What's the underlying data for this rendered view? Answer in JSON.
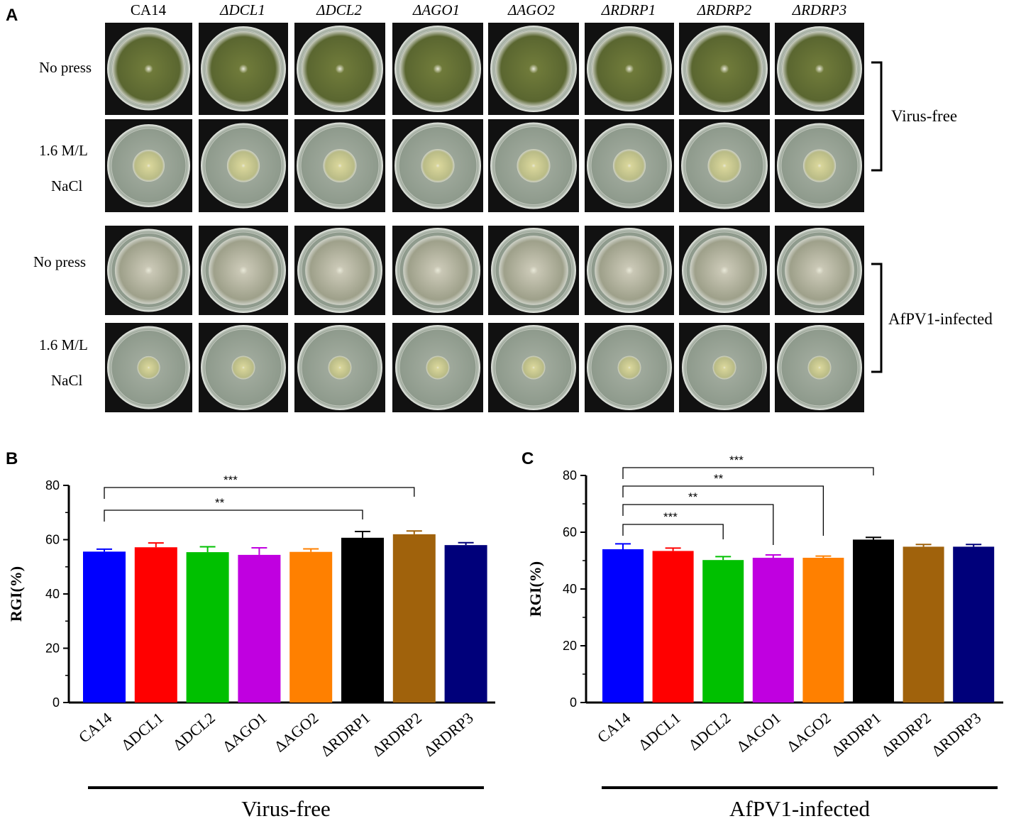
{
  "panel_a": {
    "letter": "A",
    "columns": [
      "CA14",
      "ΔDCL1",
      "ΔDCL2",
      "ΔAGO1",
      "ΔAGO2",
      "ΔRDRP1",
      "ΔRDRP2",
      "ΔRDRP3"
    ],
    "row_labels": {
      "no_press_1": "No press",
      "salt_1_line1": "1.6 M/L",
      "salt_1_line2": "NaCl",
      "no_press_2": "No press",
      "salt_2_line1": "1.6 M/L",
      "salt_2_line2": "NaCl"
    },
    "group_labels": {
      "virus_free": "Virus-free",
      "infected": "AfPV1-infected"
    },
    "colors": {
      "tile_bg": "#111111",
      "dish": "#8e9a8c",
      "green_colony": "#6f7a3a",
      "white_colony": "#c9c7b5",
      "small_colony": "#d8d59a"
    }
  },
  "chart_data": [
    {
      "type": "bar",
      "panel": "B",
      "categories": [
        "CA14",
        "ΔDCL1",
        "ΔDCL2",
        "ΔAGO1",
        "ΔAGO2",
        "ΔRDRP1",
        "ΔRDRP2",
        "ΔRDRP3"
      ],
      "values": [
        55.6,
        57.2,
        55.4,
        54.4,
        55.5,
        60.7,
        62.0,
        58.0
      ],
      "errors": [
        0.9,
        1.6,
        2.0,
        2.6,
        1.1,
        2.3,
        1.2,
        0.9
      ],
      "colors": [
        "#0000ff",
        "#ff0000",
        "#00c000",
        "#c000e0",
        "#ff8000",
        "#000000",
        "#a0620c",
        "#00007a"
      ],
      "ylabel": "RGI(%)",
      "yticks": [
        "0",
        "20",
        "40",
        "60",
        "80"
      ],
      "ylim": [
        0,
        80
      ],
      "group_label": "Virus-free",
      "significance": [
        {
          "from": 0,
          "to": 6,
          "label": "***"
        },
        {
          "from": 0,
          "to": 5,
          "label": "**"
        }
      ]
    },
    {
      "type": "bar",
      "panel": "C",
      "categories": [
        "CA14",
        "ΔDCL1",
        "ΔDCL2",
        "ΔAGO1",
        "ΔAGO2",
        "ΔRDRP1",
        "ΔRDRP2",
        "ΔRDRP3"
      ],
      "values": [
        54.0,
        53.4,
        50.2,
        51.0,
        51.0,
        57.4,
        54.9,
        54.9
      ],
      "errors": [
        1.9,
        1.0,
        1.2,
        1.0,
        0.6,
        0.8,
        0.8,
        0.8
      ],
      "colors": [
        "#0000ff",
        "#ff0000",
        "#00c000",
        "#c000e0",
        "#ff8000",
        "#000000",
        "#a0620c",
        "#00007a"
      ],
      "ylabel": "RGI(%)",
      "yticks": [
        "0",
        "20",
        "40",
        "60",
        "80"
      ],
      "ylim": [
        0,
        80
      ],
      "group_label": "AfPV1-infected",
      "significance": [
        {
          "from": 0,
          "to": 5,
          "label": "***"
        },
        {
          "from": 0,
          "to": 4,
          "label": "**"
        },
        {
          "from": 0,
          "to": 3,
          "label": "**"
        },
        {
          "from": 0,
          "to": 2,
          "label": "***"
        }
      ]
    }
  ]
}
